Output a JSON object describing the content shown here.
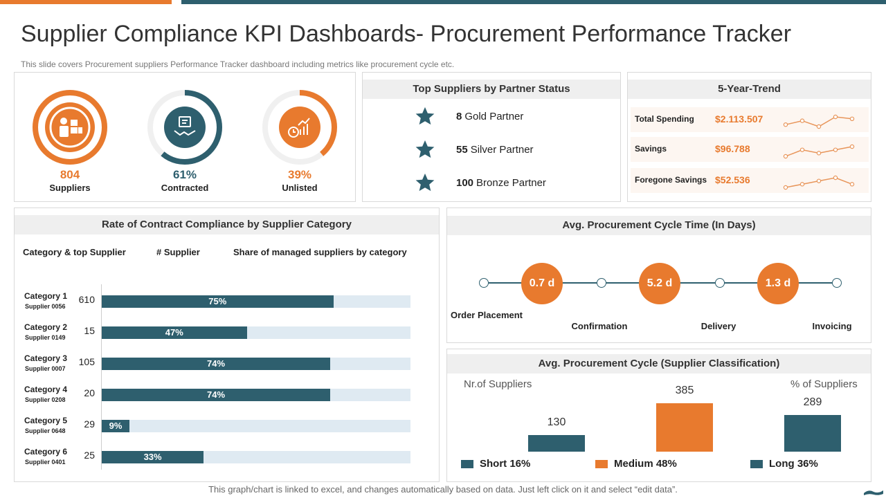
{
  "title": "Supplier Compliance KPI Dashboards- Procurement Performance Tracker",
  "subtitle": "This slide covers Procurement suppliers Performance Tracker dashboard including metrics like procurement cycle etc.",
  "footer": "This graph/chart is linked to excel, and changes automatically based on data. Just left click on it and select “edit data”.",
  "colors": {
    "accent": "#e87a2e",
    "teal": "#2e5f6e",
    "track": "#dfeaf2"
  },
  "kpis": [
    {
      "value": "804",
      "label": "Suppliers",
      "icon": "worker-boxes-icon",
      "fraction": 1.0,
      "color": "#e87a2e"
    },
    {
      "value": "61%",
      "label": "Contracted",
      "icon": "handshake-contract-icon",
      "fraction": 0.61,
      "color": "#2e5f6e"
    },
    {
      "value": "39%",
      "label": "Unlisted",
      "icon": "growth-chart-icon",
      "fraction": 0.39,
      "color": "#e87a2e"
    }
  ],
  "partners": {
    "title": "Top Suppliers by Partner Status",
    "items": [
      {
        "count": "8",
        "label": "Gold Partner",
        "icon": "star-icon"
      },
      {
        "count": "55",
        "label": "Silver Partner",
        "icon": "star-icon"
      },
      {
        "count": "100",
        "label": "Bronze Partner",
        "icon": "star-icon"
      }
    ]
  },
  "trend": {
    "title": "5-Year-Trend",
    "rows": [
      {
        "label": "Total Spending",
        "value": "$2.113.507",
        "spark": [
          2,
          4,
          1,
          6,
          5
        ]
      },
      {
        "label": "Savings",
        "value": "$96.788",
        "spark": [
          1,
          3,
          2,
          3,
          4
        ]
      },
      {
        "label": "Foregone Savings",
        "value": "$52.536",
        "spark": [
          1,
          2,
          3,
          4,
          2
        ]
      }
    ]
  },
  "compliance": {
    "title": "Rate of Contract Compliance by Supplier Category",
    "col1": "Category & top Supplier",
    "col2": "# Supplier",
    "col3": "Share of managed suppliers by category",
    "rows": [
      {
        "name": "Category 1",
        "supplier": "Supplier 0056",
        "count": "610",
        "pct": 75,
        "label": "75%"
      },
      {
        "name": "Category 2",
        "supplier": "Supplier 0149",
        "count": "15",
        "pct": 47,
        "label": "47%"
      },
      {
        "name": "Category 3",
        "supplier": "Supplier 0007",
        "count": "105",
        "pct": 74,
        "label": "74%"
      },
      {
        "name": "Category 4",
        "supplier": "Supplier 0208",
        "count": "20",
        "pct": 74,
        "label": "74%"
      },
      {
        "name": "Category 5",
        "supplier": "Supplier 0648",
        "count": "29",
        "pct": 9,
        "label": "9%"
      },
      {
        "name": "Category 6",
        "supplier": "Supplier 0401",
        "count": "25",
        "pct": 33,
        "label": "33%"
      }
    ]
  },
  "cycle": {
    "title": "Avg. Procurement Cycle Time (In Days)",
    "durations": [
      "0.7 d",
      "5.2 d",
      "1.3 d"
    ],
    "stages": [
      "Order Placement",
      "Confirmation",
      "Delivery",
      "Invoicing"
    ]
  },
  "classification": {
    "title": "Avg. Procurement Cycle (Supplier Classification)",
    "left_label": "Nr.of Suppliers",
    "right_label": "% of Suppliers",
    "bars": [
      {
        "value": 130,
        "label": "130",
        "legend": "Short 16%",
        "color": "#2e5f6e"
      },
      {
        "value": 385,
        "label": "385",
        "legend": "Medium 48%",
        "color": "#e87a2e"
      },
      {
        "value": 289,
        "label": "289",
        "legend": "Long 36%",
        "color": "#2e5f6e"
      }
    ]
  }
}
